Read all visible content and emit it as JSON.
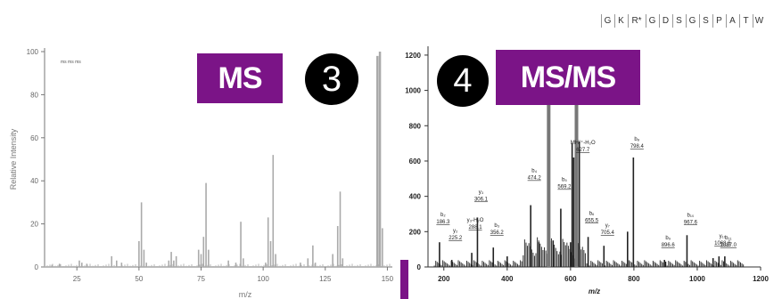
{
  "labels": {
    "ms": "MS",
    "step3": "3",
    "step4": "4",
    "msms": "MS/MS"
  },
  "colors": {
    "accent": "#7b1487",
    "peak_left": "#aaaaaa",
    "peak_right": "#222222"
  },
  "sequence": [
    "G",
    "K",
    "R*",
    "G",
    "D",
    "S",
    "G",
    "S",
    "P",
    "A",
    "T",
    "W"
  ],
  "chart_data": [
    {
      "type": "bar",
      "subtype": "mass-spectrum",
      "title": "",
      "legend_text": "ms ms ms",
      "xlabel": "m/z",
      "ylabel": "Relative Intensity",
      "xlim": [
        12,
        152
      ],
      "ylim": [
        0,
        100
      ],
      "xticks": [
        25,
        50,
        75,
        100,
        125,
        150
      ],
      "yticks": [
        0,
        20,
        40,
        60,
        80,
        100
      ],
      "grid": false,
      "peaks": [
        {
          "x": 15,
          "y": 1
        },
        {
          "x": 18,
          "y": 1.5
        },
        {
          "x": 26,
          "y": 3
        },
        {
          "x": 27,
          "y": 2
        },
        {
          "x": 29,
          "y": 1.5
        },
        {
          "x": 39,
          "y": 5
        },
        {
          "x": 41,
          "y": 3
        },
        {
          "x": 43,
          "y": 2
        },
        {
          "x": 50,
          "y": 12
        },
        {
          "x": 51,
          "y": 30
        },
        {
          "x": 52,
          "y": 8
        },
        {
          "x": 53,
          "y": 2
        },
        {
          "x": 62,
          "y": 3
        },
        {
          "x": 63,
          "y": 7
        },
        {
          "x": 64,
          "y": 3
        },
        {
          "x": 65,
          "y": 5
        },
        {
          "x": 74,
          "y": 8
        },
        {
          "x": 75,
          "y": 6
        },
        {
          "x": 76,
          "y": 14
        },
        {
          "x": 77,
          "y": 39
        },
        {
          "x": 78,
          "y": 8
        },
        {
          "x": 86,
          "y": 3
        },
        {
          "x": 89,
          "y": 2
        },
        {
          "x": 91,
          "y": 21
        },
        {
          "x": 92,
          "y": 4
        },
        {
          "x": 101,
          "y": 2
        },
        {
          "x": 102,
          "y": 23
        },
        {
          "x": 103,
          "y": 12
        },
        {
          "x": 104,
          "y": 52
        },
        {
          "x": 105,
          "y": 6
        },
        {
          "x": 115,
          "y": 2
        },
        {
          "x": 118,
          "y": 4
        },
        {
          "x": 120,
          "y": 10
        },
        {
          "x": 121,
          "y": 2
        },
        {
          "x": 128,
          "y": 6
        },
        {
          "x": 130,
          "y": 19
        },
        {
          "x": 131,
          "y": 35
        },
        {
          "x": 132,
          "y": 4
        },
        {
          "x": 146,
          "y": 98
        },
        {
          "x": 147,
          "y": 100
        },
        {
          "x": 148,
          "y": 18
        }
      ]
    },
    {
      "type": "bar",
      "subtype": "mass-spectrum",
      "title": "",
      "xlabel": "m/z",
      "ylabel": "",
      "xlim": [
        150,
        1200
      ],
      "ylim": [
        0,
        1250
      ],
      "xticks": [
        200,
        400,
        600,
        800,
        1000,
        1200
      ],
      "yticks": [
        0,
        200,
        400,
        600,
        800,
        1000,
        1200
      ],
      "grid": false,
      "peaks": [
        {
          "x": 186.3,
          "y": 140
        },
        {
          "x": 225.2,
          "y": 40
        },
        {
          "x": 288.1,
          "y": 80
        },
        {
          "x": 306.1,
          "y": 280
        },
        {
          "x": 356.2,
          "y": 110
        },
        {
          "x": 400,
          "y": 60
        },
        {
          "x": 474.2,
          "y": 350
        },
        {
          "x": 500,
          "y": 140
        },
        {
          "x": 531,
          "y": 1180
        },
        {
          "x": 545,
          "y": 150
        },
        {
          "x": 569.2,
          "y": 330
        },
        {
          "x": 600,
          "y": 140
        },
        {
          "x": 605,
          "y": 700
        },
        {
          "x": 610,
          "y": 620
        },
        {
          "x": 618.7,
          "y": 1060
        },
        {
          "x": 627.7,
          "y": 710
        },
        {
          "x": 655.5,
          "y": 170
        },
        {
          "x": 705.4,
          "y": 120
        },
        {
          "x": 780,
          "y": 200
        },
        {
          "x": 798.4,
          "y": 620
        },
        {
          "x": 900,
          "y": 30
        },
        {
          "x": 896.6,
          "y": 40
        },
        {
          "x": 967.6,
          "y": 180
        },
        {
          "x": 1050,
          "y": 50
        },
        {
          "x": 1068.6,
          "y": 60
        },
        {
          "x": 1087.0,
          "y": 60
        }
      ],
      "annotations": [
        {
          "text": "b₂",
          "sub": "186.3",
          "x": 186.3
        },
        {
          "text": "y₂",
          "sub": "225.2",
          "x": 225.2
        },
        {
          "text": "y₃-H₂O",
          "sub": "288.1",
          "x": 288.1
        },
        {
          "text": "y₃",
          "sub": "306.1",
          "x": 306.1
        },
        {
          "text": "b₃",
          "sub": "356.2",
          "x": 356.2
        },
        {
          "text": "b₄",
          "sub": "474.2",
          "x": 474.2
        },
        {
          "text": "b₅",
          "sub": "569.2",
          "x": 569.2
        },
        {
          "text": "y₆",
          "sub": "618.7",
          "x": 618.7
        },
        {
          "text": "MH²⁺-H₂O",
          "sub": "627.7",
          "x": 627.7
        },
        {
          "text": "b₆",
          "sub": "655.5",
          "x": 655.5
        },
        {
          "text": "y₇",
          "sub": "705.4",
          "x": 705.4
        },
        {
          "text": "b₈",
          "sub": "798.4",
          "x": 798.4
        },
        {
          "text": "b₉",
          "sub": "896.6",
          "x": 896.6
        },
        {
          "text": "b₁₀",
          "sub": "967.6",
          "x": 967.6
        },
        {
          "text": "y₁₀",
          "sub": "1068.6",
          "x": 1068.6
        },
        {
          "text": "b₁₁",
          "sub": "1087.0",
          "x": 1087.0
        }
      ]
    }
  ]
}
